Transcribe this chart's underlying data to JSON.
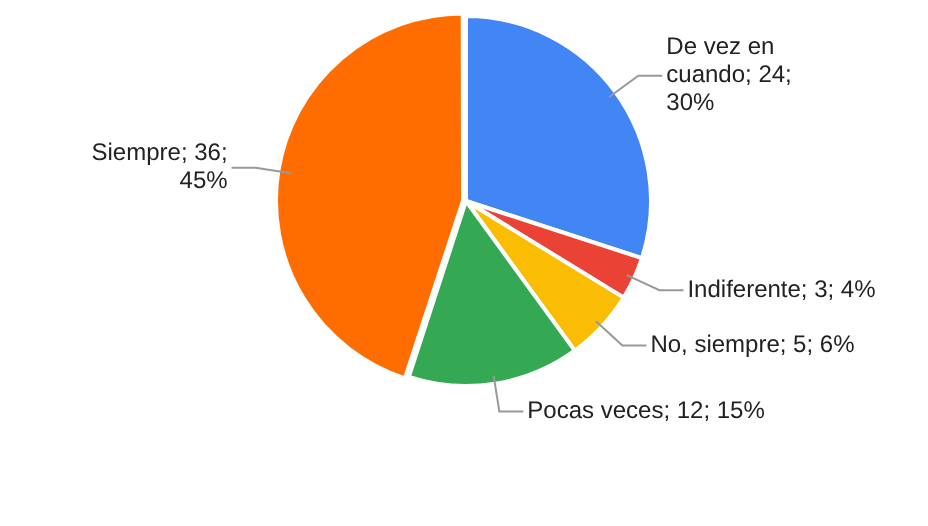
{
  "chart_data": {
    "type": "pie",
    "categories": [
      "De vez en cuando",
      "Indiferente",
      "No, siempre",
      "Pocas veces",
      "Siempre"
    ],
    "values": [
      24,
      3,
      5,
      12,
      36
    ],
    "colors": [
      "#4285f4",
      "#ea4335",
      "#fbbc04",
      "#34a853",
      "#ff6d01"
    ],
    "value_labels": [
      "24; 30%",
      "3; 4%",
      "5; 6%",
      "12; 15%",
      "36; 45%"
    ],
    "legend": false
  }
}
